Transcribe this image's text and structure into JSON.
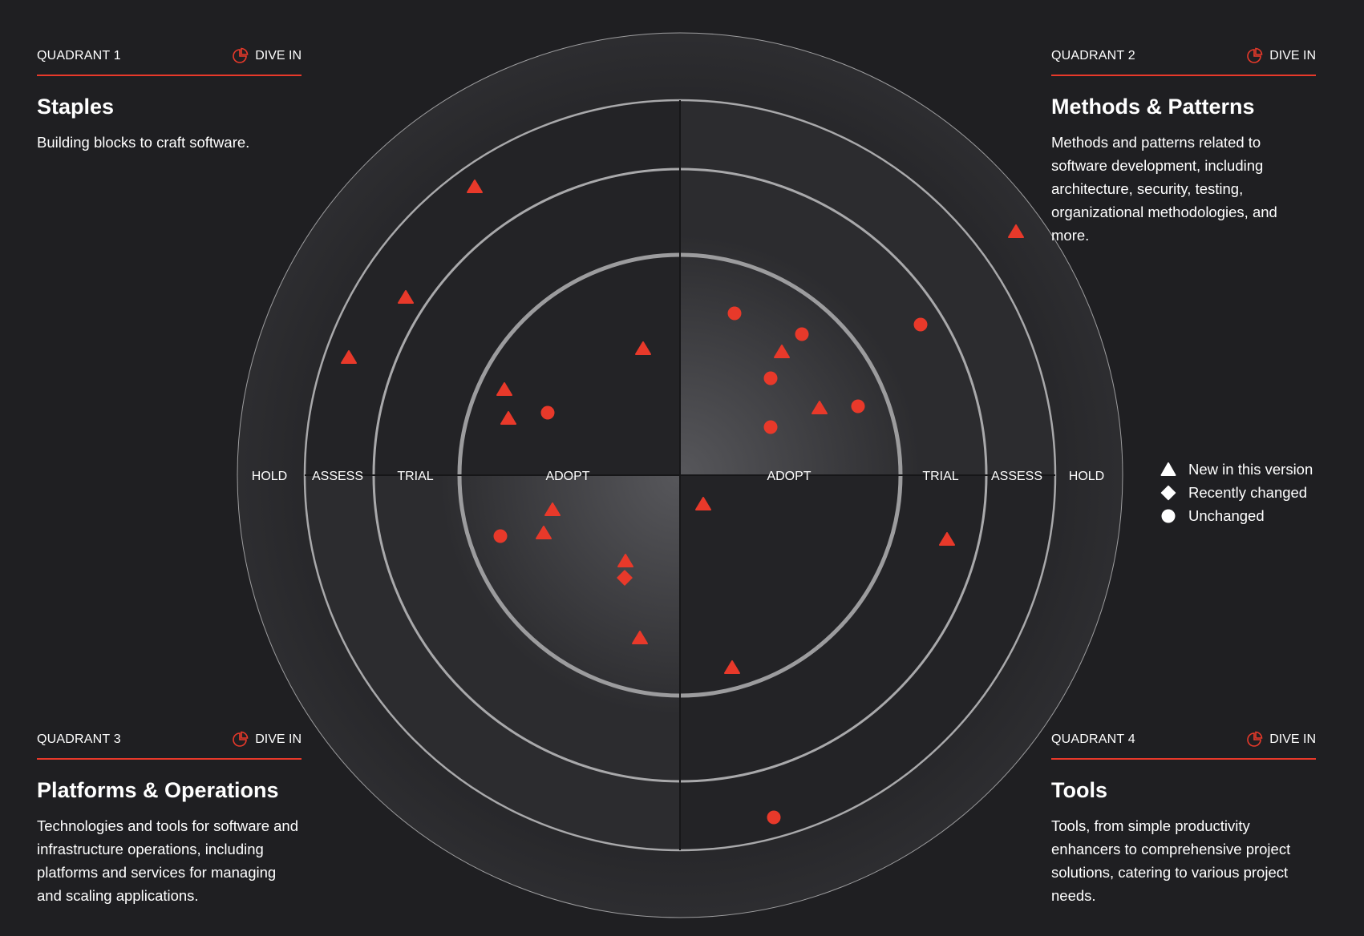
{
  "quadrants": [
    {
      "label": "QUADRANT 1",
      "dive_in": "DIVE IN",
      "title": "Staples",
      "description": "Building blocks to craft software."
    },
    {
      "label": "QUADRANT 2",
      "dive_in": "DIVE IN",
      "title": "Methods & Patterns",
      "description": "Methods and patterns related to software development, including architecture, security, testing, organizational methodologies, and more."
    },
    {
      "label": "QUADRANT 3",
      "dive_in": "DIVE IN",
      "title": "Platforms & Operations",
      "description": "Technologies and tools for software and infrastructure operations, including platforms and services for managing and scaling applications."
    },
    {
      "label": "QUADRANT 4",
      "dive_in": "DIVE IN",
      "title": "Tools",
      "description": "Tools, from simple productivity enhancers to comprehensive project solutions, catering to various project needs."
    }
  ],
  "rings": [
    "ADOPT",
    "TRIAL",
    "ASSESS",
    "HOLD"
  ],
  "legend": [
    {
      "shape": "triangle",
      "label": "New in this version"
    },
    {
      "shape": "diamond",
      "label": "Recently changed"
    },
    {
      "shape": "circle",
      "label": "Unchanged"
    }
  ],
  "colors": {
    "background": "#1f1f22",
    "accent": "#e8392a",
    "ring_line": "#a6a6a8",
    "text": "#ffffff"
  },
  "chart_data": {
    "type": "scatter",
    "radar_rings": [
      "ADOPT",
      "TRIAL",
      "ASSESS",
      "HOLD"
    ],
    "radar_quadrants": [
      "Staples",
      "Methods & Patterns",
      "Platforms & Operations",
      "Tools"
    ],
    "blips": [
      {
        "quadrant": 1,
        "ring": "ASSESS",
        "shape": "triangle"
      },
      {
        "quadrant": 1,
        "ring": "ASSESS",
        "shape": "triangle"
      },
      {
        "quadrant": 1,
        "ring": "ASSESS",
        "shape": "triangle"
      },
      {
        "quadrant": 1,
        "ring": "ADOPT",
        "shape": "triangle"
      },
      {
        "quadrant": 1,
        "ring": "ADOPT",
        "shape": "triangle"
      },
      {
        "quadrant": 1,
        "ring": "ADOPT",
        "shape": "triangle"
      },
      {
        "quadrant": 1,
        "ring": "ADOPT",
        "shape": "circle"
      },
      {
        "quadrant": 2,
        "ring": "ADOPT",
        "shape": "circle"
      },
      {
        "quadrant": 2,
        "ring": "ADOPT",
        "shape": "circle"
      },
      {
        "quadrant": 2,
        "ring": "ADOPT",
        "shape": "triangle"
      },
      {
        "quadrant": 2,
        "ring": "ADOPT",
        "shape": "circle"
      },
      {
        "quadrant": 2,
        "ring": "ADOPT",
        "shape": "triangle"
      },
      {
        "quadrant": 2,
        "ring": "ADOPT",
        "shape": "circle"
      },
      {
        "quadrant": 2,
        "ring": "ADOPT",
        "shape": "circle"
      },
      {
        "quadrant": 2,
        "ring": "TRIAL",
        "shape": "circle"
      },
      {
        "quadrant": 2,
        "ring": "HOLD",
        "shape": "triangle"
      },
      {
        "quadrant": 3,
        "ring": "ADOPT",
        "shape": "triangle"
      },
      {
        "quadrant": 3,
        "ring": "ADOPT",
        "shape": "triangle"
      },
      {
        "quadrant": 3,
        "ring": "ADOPT",
        "shape": "circle"
      },
      {
        "quadrant": 3,
        "ring": "ADOPT",
        "shape": "triangle"
      },
      {
        "quadrant": 3,
        "ring": "ADOPT",
        "shape": "diamond"
      },
      {
        "quadrant": 3,
        "ring": "ADOPT",
        "shape": "triangle"
      },
      {
        "quadrant": 4,
        "ring": "ADOPT",
        "shape": "triangle"
      },
      {
        "quadrant": 4,
        "ring": "ADOPT",
        "shape": "triangle"
      },
      {
        "quadrant": 4,
        "ring": "TRIAL",
        "shape": "triangle"
      },
      {
        "quadrant": 4,
        "ring": "ASSESS",
        "shape": "circle"
      }
    ]
  }
}
